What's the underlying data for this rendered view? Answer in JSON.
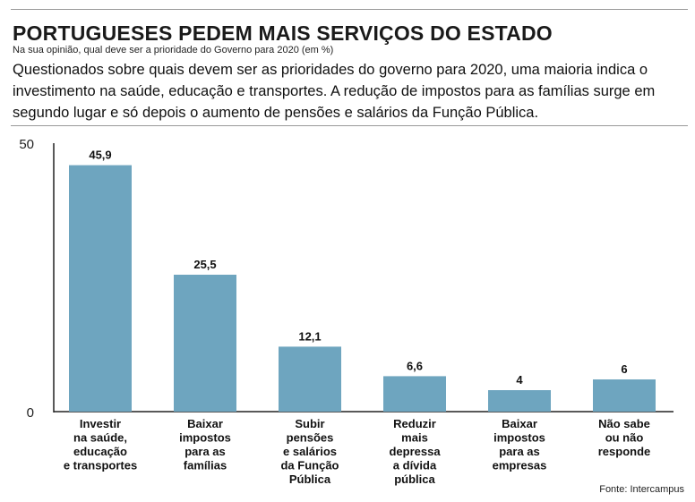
{
  "title": "PORTUGUESES PEDEM MAIS SERVIÇOS DO ESTADO",
  "subtitle": "Na sua opinião, qual deve ser a prioridade do Governo para 2020 (em %)",
  "lede": "Questionados sobre quais devem ser as prioridades do governo para 2020, uma maioria indica o investimento na saúde, educação e transportes. A redução de impostos para as famílias surge em segundo lugar e só depois o aumento de pensões e salários da Função Pública.",
  "source": "Fonte: Intercampus",
  "colors": {
    "bar": "#6ea5bf",
    "axis": "#222222"
  },
  "chart_data": {
    "type": "bar",
    "title": "PORTUGUESES PEDEM MAIS SERVIÇOS DO ESTADO",
    "xlabel": "",
    "ylabel": "",
    "ylim": [
      0,
      50
    ],
    "yticks": [
      "0",
      "50"
    ],
    "grid": false,
    "categories": [
      [
        "Investir",
        "na saúde,",
        "educação",
        "e transportes"
      ],
      [
        "Baixar",
        "impostos",
        "para as",
        "famílias"
      ],
      [
        "Subir",
        "pensões",
        "e salários",
        "da Função",
        "Pública"
      ],
      [
        "Reduzir",
        "mais",
        "depressa",
        "a dívida",
        "pública"
      ],
      [
        "Baixar",
        "impostos",
        "para as",
        "empresas"
      ],
      [
        "Não sabe",
        "ou não",
        "responde"
      ]
    ],
    "values": [
      45.9,
      25.5,
      12.1,
      6.6,
      4,
      6
    ],
    "value_labels": [
      "45,9",
      "25,5",
      "12,1",
      "6,6",
      "4",
      "6"
    ]
  }
}
